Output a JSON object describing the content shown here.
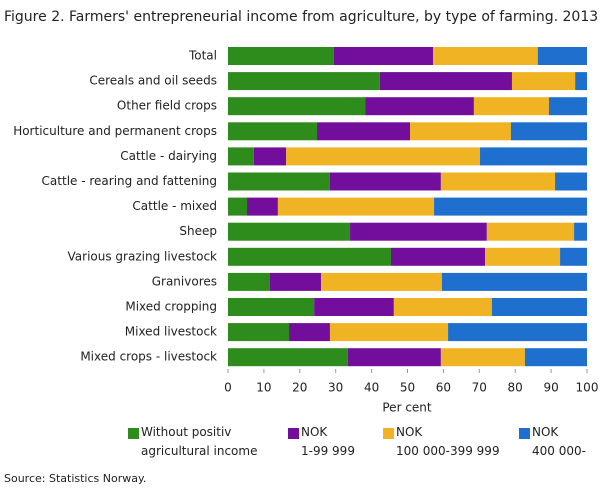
{
  "chart_data": {
    "type": "stacked-bar-horizontal",
    "title": "Figure 2. Farmers' entrepreneurial income from agriculture, by type of farming. 2013",
    "categories": [
      "Total",
      "Cereals and oil seeds",
      "Other field crops",
      "Horticulture and permanent crops",
      "Cattle - dairying",
      "Cattle - rearing and fattening",
      "Cattle - mixed",
      "Sheep",
      "Various grazing livestock",
      "Granivores",
      "Mixed cropping",
      "Mixed livestock",
      "Mixed crops - livestock"
    ],
    "series": [
      {
        "name": "Without positiv\nagricultural income",
        "color": "#2d8c1c",
        "values": [
          29.5,
          42.3,
          38.2,
          24.8,
          7.2,
          28.4,
          5.3,
          34.0,
          45.4,
          11.7,
          24.0,
          17.0,
          33.4
        ]
      },
      {
        "name": "NOK\n1-99 999",
        "color": "#720d9c",
        "values": [
          27.6,
          36.8,
          30.3,
          25.9,
          9.0,
          30.9,
          8.6,
          38.1,
          26.2,
          14.2,
          22.2,
          11.4,
          25.9
        ]
      },
      {
        "name": "NOK\n100 000-399 999",
        "color": "#f0b323",
        "values": [
          29.2,
          17.6,
          20.9,
          28.1,
          54.0,
          31.8,
          43.5,
          24.3,
          20.9,
          33.7,
          27.3,
          32.9,
          23.4
        ]
      },
      {
        "name": "NOK\n400 000-",
        "color": "#1e6fce",
        "values": [
          13.7,
          3.3,
          10.6,
          21.2,
          29.8,
          8.9,
          42.6,
          3.6,
          7.5,
          40.4,
          26.5,
          38.7,
          17.3
        ]
      }
    ],
    "xlim": [
      0,
      100
    ],
    "xticks": [
      0,
      10,
      20,
      30,
      40,
      50,
      60,
      70,
      80,
      90,
      100
    ],
    "xlabel": "Per cent",
    "source": "Source: Statistics Norway."
  }
}
